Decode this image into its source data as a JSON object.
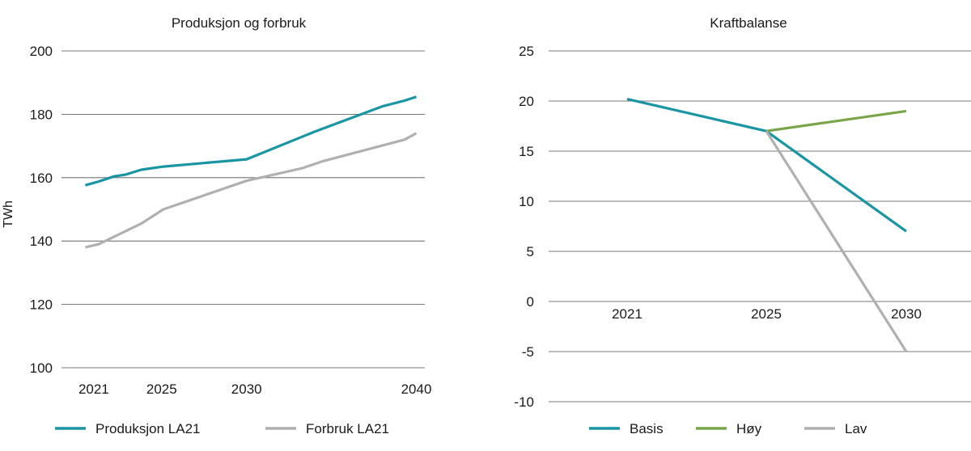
{
  "chart_data": [
    {
      "type": "line",
      "title": "Produksjon og forbruk",
      "xlabel": "",
      "ylabel": "TWh",
      "xlim": [
        2019.1,
        2040.5
      ],
      "ylim": [
        100,
        200
      ],
      "yticks": [
        "100",
        "120",
        "140",
        "160",
        "180",
        "200"
      ],
      "xticks": [
        "2021",
        "2025",
        "2030",
        "2040"
      ],
      "grid": "horizontal",
      "legend": "bottom",
      "series": [
        {
          "name": "Produksjon LA21",
          "color": "#1a95a3",
          "x": [
            2020.5,
            2021.3,
            2022.2,
            2022.9,
            2023.8,
            2025.1,
            2030.0,
            2034.0,
            2038.0,
            2039.3,
            2040.0
          ],
          "y": [
            157.6,
            158.8,
            160.4,
            161.0,
            162.5,
            163.5,
            165.8,
            174.5,
            182.5,
            184.3,
            185.5
          ]
        },
        {
          "name": "Forbruk LA21",
          "color": "#b0b0b0",
          "x": [
            2020.5,
            2021.3,
            2023.8,
            2025.1,
            2030.0,
            2033.3,
            2034.5,
            2039.3,
            2040.0
          ],
          "y": [
            138.0,
            139.0,
            145.5,
            150.0,
            159.0,
            163.0,
            165.2,
            172.0,
            174.0
          ]
        }
      ]
    },
    {
      "type": "line",
      "title": "Kraftbalanse",
      "xlabel": "",
      "ylabel": "",
      "categories": [
        "2021",
        "2025",
        "2030"
      ],
      "ylim": [
        -10,
        25
      ],
      "yticks": [
        "-10",
        "-5",
        "0",
        "5",
        "10",
        "15",
        "20",
        "25"
      ],
      "grid": "horizontal",
      "legend": "bottom",
      "series": [
        {
          "name": "Basis",
          "color": "#1a95a3",
          "values": [
            20.2,
            17.0,
            7.0
          ]
        },
        {
          "name": "Høy",
          "color": "#79a548",
          "values": [
            null,
            17.0,
            19.0
          ]
        },
        {
          "name": "Lav",
          "color": "#b0b0b0",
          "values": [
            null,
            17.0,
            -5.0
          ]
        }
      ]
    }
  ]
}
